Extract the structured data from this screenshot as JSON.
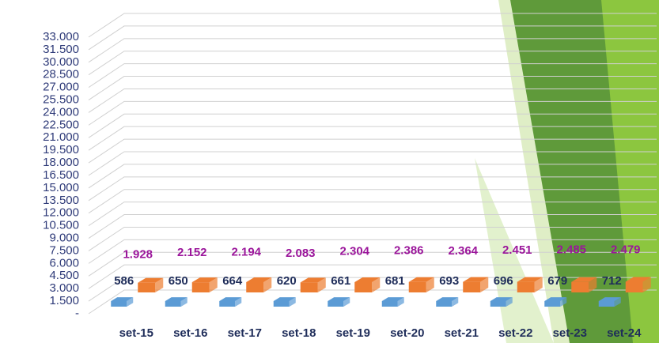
{
  "chart_data": {
    "type": "bar3d",
    "categories": [
      "set-15",
      "set-16",
      "set-17",
      "set-18",
      "set-19",
      "set-20",
      "set-21",
      "set-22",
      "set-23",
      "set-24"
    ],
    "series": [
      {
        "color": "#5b9bd5",
        "values": [
          100,
          100,
          100,
          100,
          100,
          100,
          100,
          100,
          100,
          100
        ]
      },
      {
        "color": "#ed7d31",
        "values": [
          586,
          650,
          664,
          620,
          661,
          681,
          693,
          696,
          679,
          712
        ],
        "label_color": "#1f2d5a"
      },
      {
        "color": "#9b169b",
        "values": [
          1928,
          2152,
          2194,
          2083,
          2304,
          2386,
          2364,
          2451,
          2485,
          2479
        ],
        "value_labels": [
          "1.928",
          "2.152",
          "2.194",
          "2.083",
          "2.304",
          "2.386",
          "2.364",
          "2.451",
          "2.485",
          "2.479"
        ]
      }
    ],
    "ylim": [
      0,
      33000
    ],
    "yticks": [
      {
        "value": 0,
        "label": "-"
      },
      {
        "value": 1500,
        "label": "1.500"
      },
      {
        "value": 3000,
        "label": "3.000"
      },
      {
        "value": 4500,
        "label": "4.500"
      },
      {
        "value": 6000,
        "label": "6.000"
      },
      {
        "value": 7500,
        "label": "7.500"
      },
      {
        "value": 9000,
        "label": "9.000"
      },
      {
        "value": 10500,
        "label": "10.500"
      },
      {
        "value": 12000,
        "label": "12.000"
      },
      {
        "value": 13500,
        "label": "13.500"
      },
      {
        "value": 15000,
        "label": "15.000"
      },
      {
        "value": 16500,
        "label": "16.500"
      },
      {
        "value": 18000,
        "label": "18.000"
      },
      {
        "value": 19500,
        "label": "19.500"
      },
      {
        "value": 21000,
        "label": "21.000"
      },
      {
        "value": 22500,
        "label": "22.500"
      },
      {
        "value": 24000,
        "label": "24.000"
      },
      {
        "value": 25500,
        "label": "25.500"
      },
      {
        "value": 27000,
        "label": "27.000"
      },
      {
        "value": 28500,
        "label": "28.500"
      },
      {
        "value": 30000,
        "label": "30.000"
      },
      {
        "value": 31500,
        "label": "31.500"
      },
      {
        "value": 33000,
        "label": "33.000"
      }
    ],
    "grid": true
  }
}
